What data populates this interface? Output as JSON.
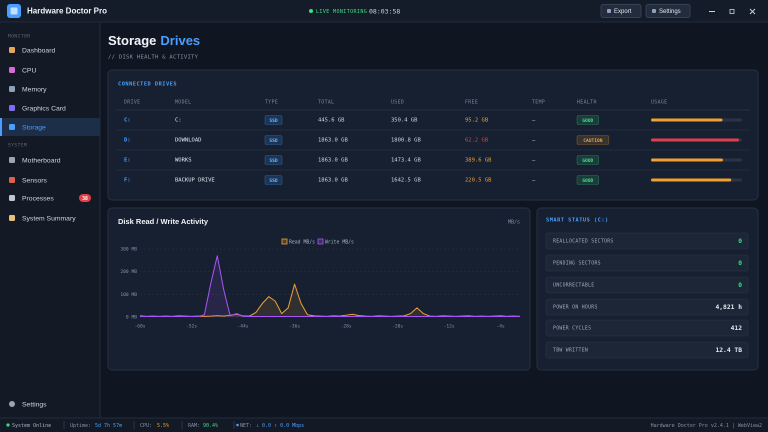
{
  "topbar": {
    "title": "Hardware Doctor Pro",
    "status": "LIVE MONITORING",
    "clock": "08:03:58",
    "buttons": [
      "Export",
      "Settings"
    ]
  },
  "sidebar": {
    "sections": [
      {
        "title": "MONITOR",
        "items": [
          {
            "label": "Dashboard"
          },
          {
            "label": "CPU"
          },
          {
            "label": "Memory"
          },
          {
            "label": "Graphics Card"
          },
          {
            "label": "Storage",
            "active": true
          }
        ]
      },
      {
        "title": "SYSTEM",
        "items": [
          {
            "label": "Motherboard"
          },
          {
            "label": "Sensors"
          },
          {
            "label": "Processes",
            "badge": 38
          },
          {
            "label": "System Summary"
          }
        ]
      }
    ],
    "footer": "Settings"
  },
  "page": {
    "title": "Storage",
    "title_accent": "Drives",
    "subtitle": "// DISK HEALTH & ACTIVITY"
  },
  "drives": {
    "title": "CONNECTED DRIVES",
    "columns": [
      "DRIVE",
      "MODEL",
      "TYPE",
      "TOTAL",
      "USED",
      "FREE",
      "TEMP",
      "HEALTH",
      "USAGE"
    ],
    "rows": [
      {
        "drive": "C:",
        "model": "C:",
        "type": "SSD",
        "total": "445.6 GB",
        "used": "350.4 GB",
        "free": "95.2 GB",
        "temp": "—",
        "health": "GOOD",
        "health_color": "#3ddc84",
        "usage": 78.6,
        "color": "#f0a030"
      },
      {
        "drive": "D:",
        "model": "DOWNLOAD",
        "type": "SSD",
        "total": "1863.0 GB",
        "used": "1800.8 GB",
        "free": "62.2 GB",
        "temp": "—",
        "health": "CAUTION",
        "health_color": "#f0a030",
        "usage": 96.7,
        "color": "#e0404a"
      },
      {
        "drive": "E:",
        "model": "WORKS",
        "type": "SSD",
        "total": "1863.0 GB",
        "used": "1473.4 GB",
        "free": "389.6 GB",
        "temp": "—",
        "health": "GOOD",
        "health_color": "#3ddc84",
        "usage": 79.1,
        "color": "#f0a030"
      },
      {
        "drive": "F:",
        "model": "BACKUP DRIVE",
        "type": "SSD",
        "total": "1863.0 GB",
        "used": "1642.5 GB",
        "free": "220.5 GB",
        "temp": "—",
        "health": "GOOD",
        "health_color": "#3ddc84",
        "usage": 88.2,
        "color": "#f0a030"
      }
    ]
  },
  "chart_data": {
    "type": "line",
    "title": "Disk Read / Write Activity",
    "unit": "MB/s",
    "x": [
      -60,
      -59,
      -58,
      -57,
      -56,
      -55,
      -54,
      -53,
      -52,
      -51,
      -50,
      -49,
      -48,
      -47,
      -46,
      -45,
      -44,
      -43,
      -42,
      -41,
      -40,
      -39,
      -38,
      -37,
      -36,
      -35,
      -34,
      -33,
      -32,
      -31,
      -30,
      -29,
      -28,
      -27,
      -26,
      -25,
      -24,
      -23,
      -22,
      -21,
      -20,
      -19,
      -18,
      -17,
      -16,
      -15,
      -14,
      -13,
      -12,
      -11,
      -10,
      -9,
      -8,
      -7,
      -6,
      -5,
      -4,
      -3,
      -2,
      -1
    ],
    "series": [
      {
        "name": "Read MB/s",
        "color": "#f0a030",
        "values": [
          5,
          3,
          4,
          3,
          4,
          3,
          5,
          4,
          3,
          4,
          3,
          4,
          6,
          4,
          8,
          12,
          5,
          4,
          20,
          60,
          90,
          70,
          15,
          40,
          145,
          60,
          10,
          5,
          4,
          3,
          5,
          4,
          8,
          12,
          6,
          4,
          3,
          5,
          4,
          3,
          4,
          5,
          15,
          40,
          15,
          4,
          3,
          5,
          4,
          3,
          4,
          5,
          3,
          4,
          3,
          4,
          5,
          3,
          4,
          3
        ]
      },
      {
        "name": "Write MB/s",
        "color": "#a855f7",
        "values": [
          2,
          2,
          2,
          2,
          2,
          2,
          2,
          2,
          2,
          2,
          10,
          150,
          270,
          120,
          5,
          15,
          3,
          2,
          2,
          2,
          2,
          2,
          2,
          2,
          2,
          2,
          2,
          2,
          2,
          2,
          2,
          2,
          2,
          2,
          2,
          2,
          2,
          2,
          2,
          2,
          2,
          2,
          2,
          2,
          2,
          2,
          2,
          2,
          2,
          2,
          2,
          2,
          2,
          2,
          2,
          2,
          2,
          2,
          2,
          2
        ]
      }
    ],
    "xlim": [
      -60,
      -1
    ],
    "xticks": [
      {
        "value": -60,
        "label": "-60s"
      },
      {
        "value": -52,
        "label": "-52s"
      },
      {
        "value": -44,
        "label": "-44s"
      },
      {
        "value": -36,
        "label": "-36s"
      },
      {
        "value": -28,
        "label": "-28s"
      },
      {
        "value": -20,
        "label": "-20s"
      },
      {
        "value": -12,
        "label": "-12s"
      },
      {
        "value": -4,
        "label": "-4s"
      }
    ],
    "ylim": [
      0,
      300
    ],
    "yticks": [
      {
        "value": 0,
        "label": "0 MB"
      },
      {
        "value": 100,
        "label": "100 MB"
      },
      {
        "value": 200,
        "label": "200 MB"
      },
      {
        "value": 300,
        "label": "300 MB"
      }
    ],
    "grid": true,
    "legend": "top"
  },
  "smart": {
    "title": "SMART STATUS (C:)",
    "rows": [
      {
        "label": "REALLOCATED SECTORS",
        "value": "0",
        "color": "#3ddc84"
      },
      {
        "label": "PENDING SECTORS",
        "value": "0",
        "color": "#3ddc84"
      },
      {
        "label": "UNCORRECTABLE",
        "value": "0",
        "color": "#3ddc84"
      },
      {
        "label": "POWER ON HOURS",
        "value": "4,821 h",
        "color": "#e5e9f0"
      },
      {
        "label": "POWER CYCLES",
        "value": "412",
        "color": "#e5e9f0"
      },
      {
        "label": "TBW WRITTEN",
        "value": "12.4 TB",
        "color": "#e5e9f0"
      }
    ]
  },
  "statusbar": {
    "online": "System Online",
    "items": [
      {
        "label": "Uptime:",
        "value": "5d 7h 57m",
        "color": "#4a9eff"
      },
      {
        "label": "CPU:",
        "value": "5.5%",
        "color": "#f0a030"
      },
      {
        "label": "RAM:",
        "value": "90.4%",
        "color": "#3ddc84"
      },
      {
        "label": "NET:",
        "value": "↓ 0.0 ↑ 0.0 Mbps",
        "color": "#4a9eff"
      }
    ],
    "version": "Hardware Doctor Pro v2.4.1 | WebView2"
  }
}
